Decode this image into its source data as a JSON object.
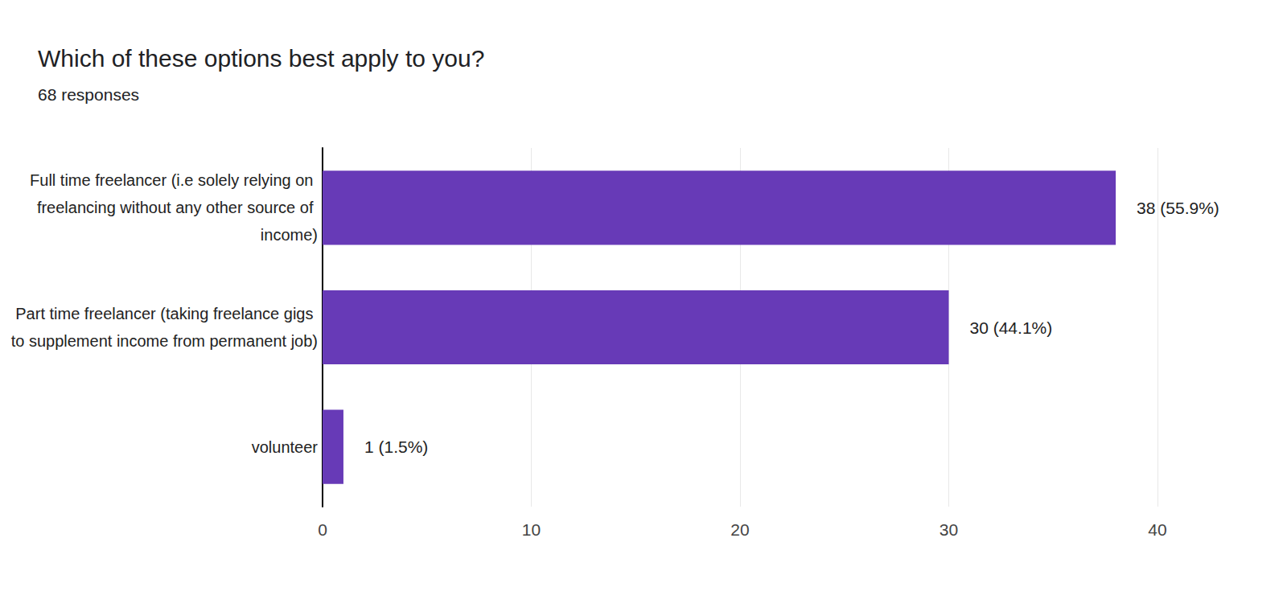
{
  "chart_data": {
    "type": "bar",
    "orientation": "horizontal",
    "title": "Which of these options best apply to you?",
    "subtitle": "68 responses",
    "categories": [
      "Full time freelancer (i.e solely relying on freelancing without any other source of income)",
      "Part time freelancer (taking freelance gigs to supplement income from permanent job)",
      "volunteer"
    ],
    "values": [
      38,
      30,
      1
    ],
    "value_labels": [
      "38 (55.9%)",
      "30 (44.1%)",
      "1 (1.5%)"
    ],
    "data_labels": true,
    "color": "#673ab7",
    "xlim": [
      0,
      40
    ],
    "xticks": [
      0,
      10,
      20,
      30,
      40
    ],
    "grid": true
  }
}
